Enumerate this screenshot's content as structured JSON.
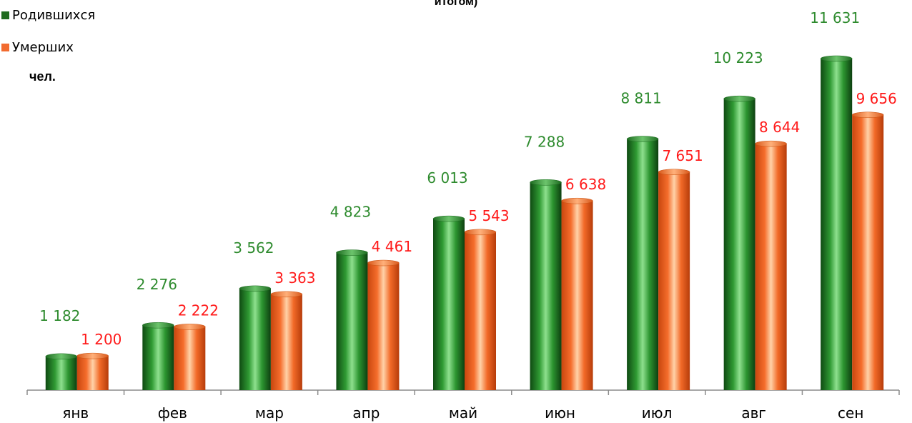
{
  "chart_data": {
    "type": "bar",
    "title_fragment": "итогом)",
    "unit_label": "чел.",
    "categories": [
      "янв",
      "фев",
      "мар",
      "апр",
      "май",
      "июн",
      "июл",
      "авг",
      "сен"
    ],
    "series": [
      {
        "name": "Родившихся",
        "color": "#2e8b2e",
        "label_color": "#2e8b2e",
        "values": [
          1182,
          2276,
          3562,
          4823,
          6013,
          7288,
          8811,
          10223,
          11631
        ],
        "labels": [
          "1 182",
          "2 276",
          "3 562",
          "4 823",
          "6 013",
          "7 288",
          "8 811",
          "10 223",
          "11 631"
        ]
      },
      {
        "name": "Умерших",
        "color": "#f26b2f",
        "label_color": "#ff1a1a",
        "values": [
          1200,
          2222,
          3363,
          4461,
          5543,
          6638,
          7651,
          8644,
          9656
        ],
        "labels": [
          "1 200",
          "2 222",
          "3 363",
          "4 461",
          "5 543",
          "6 638",
          "7 651",
          "8 644",
          "9 656"
        ]
      }
    ],
    "ylim": [
      0,
      12000
    ],
    "grid": false,
    "legend_position": "top-left"
  }
}
